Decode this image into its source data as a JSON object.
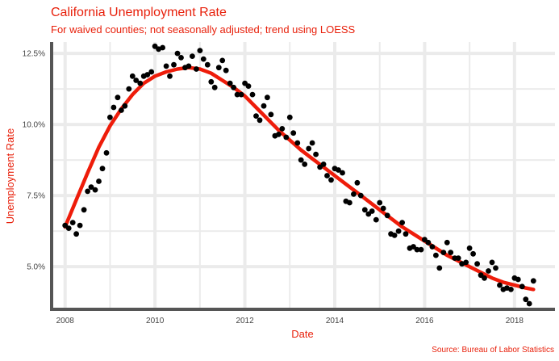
{
  "chart_data": {
    "type": "scatter",
    "title": "California Unemployment Rate",
    "subtitle": "For waived counties; not seasonally adjusted; trend using LOESS",
    "caption": "Source: Bureau of Labor Statistics",
    "xlabel": "Date",
    "ylabel": "Unemployment Rate",
    "xlim": [
      2007.7,
      2018.9
    ],
    "ylim": [
      3.5,
      12.9
    ],
    "x_ticks": [
      2008,
      2010,
      2012,
      2014,
      2016,
      2018
    ],
    "x_tick_labels": [
      "2008",
      "2010",
      "2012",
      "2014",
      "2016",
      "2018"
    ],
    "y_ticks": [
      5.0,
      7.5,
      10.0,
      12.5
    ],
    "y_tick_labels": [
      "5.0%",
      "7.5%",
      "10.0%",
      "12.5%"
    ],
    "grid": true,
    "legend": "none",
    "colors": {
      "points": "#000000",
      "trend": "#ee1c0a",
      "text": "#e8200b",
      "grid": "#ebebeb",
      "axis": "#555555"
    },
    "series": [
      {
        "type": "scatter",
        "points": [
          [
            2008.0,
            6.45
          ],
          [
            2008.08,
            6.35
          ],
          [
            2008.17,
            6.55
          ],
          [
            2008.25,
            6.15
          ],
          [
            2008.33,
            6.45
          ],
          [
            2008.42,
            7.0
          ],
          [
            2008.5,
            7.65
          ],
          [
            2008.58,
            7.8
          ],
          [
            2008.67,
            7.7
          ],
          [
            2008.75,
            8.0
          ],
          [
            2008.83,
            8.45
          ],
          [
            2008.92,
            9.0
          ],
          [
            2009.0,
            10.25
          ],
          [
            2009.08,
            10.6
          ],
          [
            2009.17,
            10.95
          ],
          [
            2009.25,
            10.5
          ],
          [
            2009.33,
            10.65
          ],
          [
            2009.42,
            11.25
          ],
          [
            2009.5,
            11.7
          ],
          [
            2009.58,
            11.55
          ],
          [
            2009.67,
            11.45
          ],
          [
            2009.75,
            11.7
          ],
          [
            2009.83,
            11.75
          ],
          [
            2009.92,
            11.85
          ],
          [
            2010.0,
            12.75
          ],
          [
            2010.08,
            12.65
          ],
          [
            2010.17,
            12.7
          ],
          [
            2010.25,
            12.05
          ],
          [
            2010.33,
            11.7
          ],
          [
            2010.42,
            12.1
          ],
          [
            2010.5,
            12.5
          ],
          [
            2010.58,
            12.35
          ],
          [
            2010.67,
            12.0
          ],
          [
            2010.75,
            12.05
          ],
          [
            2010.83,
            12.4
          ],
          [
            2010.92,
            11.95
          ],
          [
            2011.0,
            12.6
          ],
          [
            2011.08,
            12.3
          ],
          [
            2011.17,
            12.1
          ],
          [
            2011.25,
            11.5
          ],
          [
            2011.33,
            11.3
          ],
          [
            2011.42,
            12.0
          ],
          [
            2011.5,
            12.25
          ],
          [
            2011.58,
            11.9
          ],
          [
            2011.67,
            11.45
          ],
          [
            2011.75,
            11.3
          ],
          [
            2011.83,
            11.05
          ],
          [
            2011.92,
            11.05
          ],
          [
            2012.0,
            11.45
          ],
          [
            2012.08,
            11.35
          ],
          [
            2012.17,
            11.05
          ],
          [
            2012.25,
            10.3
          ],
          [
            2012.33,
            10.15
          ],
          [
            2012.42,
            10.65
          ],
          [
            2012.5,
            10.95
          ],
          [
            2012.58,
            10.35
          ],
          [
            2012.67,
            9.6
          ],
          [
            2012.75,
            9.65
          ],
          [
            2012.83,
            9.85
          ],
          [
            2012.92,
            9.55
          ],
          [
            2013.0,
            10.25
          ],
          [
            2013.08,
            9.7
          ],
          [
            2013.17,
            9.35
          ],
          [
            2013.25,
            8.75
          ],
          [
            2013.33,
            8.6
          ],
          [
            2013.42,
            9.15
          ],
          [
            2013.5,
            9.35
          ],
          [
            2013.58,
            8.95
          ],
          [
            2013.67,
            8.5
          ],
          [
            2013.75,
            8.6
          ],
          [
            2013.83,
            8.2
          ],
          [
            2013.92,
            8.05
          ],
          [
            2014.0,
            8.45
          ],
          [
            2014.08,
            8.4
          ],
          [
            2014.17,
            8.3
          ],
          [
            2014.25,
            7.3
          ],
          [
            2014.33,
            7.25
          ],
          [
            2014.42,
            7.55
          ],
          [
            2014.5,
            7.95
          ],
          [
            2014.58,
            7.5
          ],
          [
            2014.67,
            7.0
          ],
          [
            2014.75,
            6.85
          ],
          [
            2014.83,
            6.95
          ],
          [
            2014.92,
            6.65
          ],
          [
            2015.0,
            7.25
          ],
          [
            2015.08,
            7.05
          ],
          [
            2015.17,
            6.8
          ],
          [
            2015.25,
            6.15
          ],
          [
            2015.33,
            6.1
          ],
          [
            2015.42,
            6.25
          ],
          [
            2015.5,
            6.55
          ],
          [
            2015.58,
            6.15
          ],
          [
            2015.67,
            5.65
          ],
          [
            2015.75,
            5.7
          ],
          [
            2015.83,
            5.6
          ],
          [
            2015.92,
            5.6
          ],
          [
            2016.0,
            5.95
          ],
          [
            2016.08,
            5.85
          ],
          [
            2016.17,
            5.7
          ],
          [
            2016.25,
            5.4
          ],
          [
            2016.33,
            4.95
          ],
          [
            2016.42,
            5.5
          ],
          [
            2016.5,
            5.85
          ],
          [
            2016.58,
            5.5
          ],
          [
            2016.67,
            5.3
          ],
          [
            2016.75,
            5.3
          ],
          [
            2016.83,
            5.1
          ],
          [
            2016.92,
            5.15
          ],
          [
            2017.0,
            5.65
          ],
          [
            2017.08,
            5.45
          ],
          [
            2017.17,
            5.1
          ],
          [
            2017.25,
            4.7
          ],
          [
            2017.33,
            4.6
          ],
          [
            2017.42,
            4.85
          ],
          [
            2017.5,
            5.15
          ],
          [
            2017.58,
            4.95
          ],
          [
            2017.67,
            4.35
          ],
          [
            2017.75,
            4.2
          ],
          [
            2017.83,
            4.25
          ],
          [
            2017.92,
            4.2
          ],
          [
            2018.0,
            4.6
          ],
          [
            2018.08,
            4.55
          ],
          [
            2018.17,
            4.3
          ],
          [
            2018.25,
            3.85
          ],
          [
            2018.33,
            3.7
          ],
          [
            2018.42,
            4.5
          ]
        ]
      },
      {
        "type": "line",
        "name": "LOESS trend",
        "points": [
          [
            2008.0,
            6.4
          ],
          [
            2008.25,
            7.35
          ],
          [
            2008.5,
            8.3
          ],
          [
            2008.75,
            9.2
          ],
          [
            2009.0,
            9.95
          ],
          [
            2009.25,
            10.55
          ],
          [
            2009.5,
            11.05
          ],
          [
            2009.75,
            11.45
          ],
          [
            2010.0,
            11.7
          ],
          [
            2010.25,
            11.85
          ],
          [
            2010.5,
            11.95
          ],
          [
            2010.75,
            12.0
          ],
          [
            2011.0,
            11.95
          ],
          [
            2011.25,
            11.8
          ],
          [
            2011.5,
            11.55
          ],
          [
            2011.75,
            11.3
          ],
          [
            2012.0,
            11.0
          ],
          [
            2012.25,
            10.6
          ],
          [
            2012.5,
            10.2
          ],
          [
            2012.75,
            9.8
          ],
          [
            2013.0,
            9.45
          ],
          [
            2013.25,
            9.1
          ],
          [
            2013.5,
            8.8
          ],
          [
            2013.75,
            8.5
          ],
          [
            2014.0,
            8.2
          ],
          [
            2014.25,
            7.9
          ],
          [
            2014.5,
            7.6
          ],
          [
            2014.75,
            7.3
          ],
          [
            2015.0,
            7.0
          ],
          [
            2015.25,
            6.7
          ],
          [
            2015.5,
            6.4
          ],
          [
            2015.75,
            6.15
          ],
          [
            2016.0,
            5.9
          ],
          [
            2016.25,
            5.65
          ],
          [
            2016.5,
            5.4
          ],
          [
            2016.75,
            5.2
          ],
          [
            2017.0,
            5.0
          ],
          [
            2017.25,
            4.8
          ],
          [
            2017.5,
            4.6
          ],
          [
            2017.75,
            4.45
          ],
          [
            2018.0,
            4.35
          ],
          [
            2018.25,
            4.25
          ],
          [
            2018.42,
            4.2
          ]
        ]
      }
    ]
  }
}
